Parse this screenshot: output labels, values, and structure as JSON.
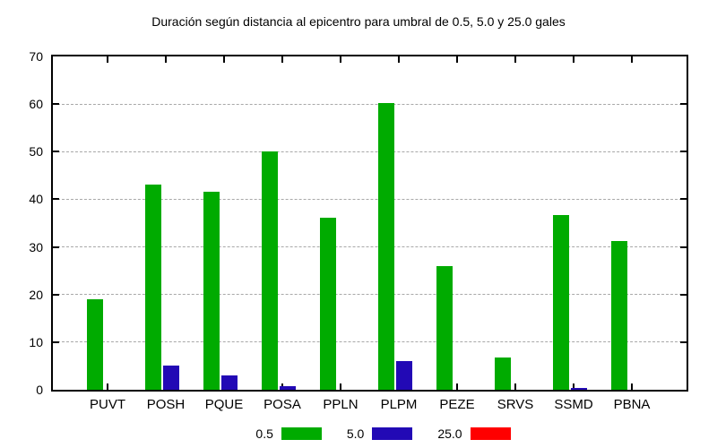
{
  "page": {
    "background": "#ffffff",
    "text_color": "#000000"
  },
  "chart_data": {
    "type": "bar",
    "title": "Duración según distancia al epicentro para umbral de 0.5, 5.0 y 25.0 gales",
    "categories": [
      "PUVT",
      "POSH",
      "PQUE",
      "POSA",
      "PPLN",
      "PLPM",
      "PEZE",
      "SRVS",
      "SSMD",
      "PBNA"
    ],
    "series": [
      {
        "name": "0.5",
        "color": "#00ab00",
        "values": [
          19,
          43,
          41.5,
          50,
          36.2,
          60.3,
          26,
          6.7,
          36.7,
          31.3
        ]
      },
      {
        "name": "5.0",
        "color": "#2209b5",
        "values": [
          0,
          5,
          3,
          0.8,
          0,
          6,
          0,
          0,
          0.4,
          0
        ]
      },
      {
        "name": "25.0",
        "color": "#ff0000",
        "values": [
          0,
          0,
          0,
          0,
          0,
          0,
          0,
          0,
          0,
          0
        ]
      }
    ],
    "xlabel": "",
    "ylabel": "",
    "ylim": [
      0,
      70
    ],
    "ytick_step": 10,
    "ytick_labels": [
      "0",
      "10",
      "20",
      "30",
      "40",
      "50",
      "60",
      "70"
    ],
    "grid": true,
    "grid_color": "#a8a8a8",
    "legend_position": "bottom-center"
  }
}
